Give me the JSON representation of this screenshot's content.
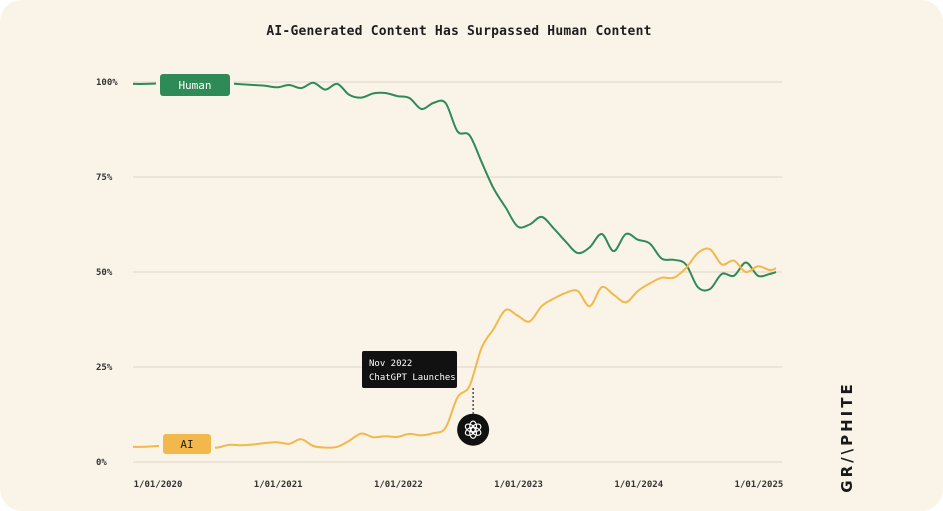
{
  "chart_data": {
    "type": "line",
    "title": "AI-Generated Content Has Surpassed Human Content",
    "xlabel": "",
    "ylabel": "",
    "x_ticks": [
      "1/01/2020",
      "1/01/2021",
      "1/01/2022",
      "1/01/2023",
      "1/01/2024",
      "1/01/2025"
    ],
    "y_ticks": [
      "100%",
      "75%",
      "50%",
      "25%",
      "0%"
    ],
    "ylim": [
      0,
      100
    ],
    "xlim": [
      2020.0,
      2025.4
    ],
    "grid": true,
    "legend": "inline labels on left",
    "series": [
      {
        "name": "Human",
        "color": "#2e8b57",
        "x": [
          2020.0,
          2020.1,
          2020.2,
          2020.3,
          2020.4,
          2020.5,
          2020.6,
          2020.7,
          2020.8,
          2020.9,
          2021.0,
          2021.1,
          2021.2,
          2021.3,
          2021.4,
          2021.5,
          2021.6,
          2021.7,
          2021.8,
          2021.9,
          2022.0,
          2022.1,
          2022.2,
          2022.3,
          2022.4,
          2022.5,
          2022.6,
          2022.7,
          2022.8,
          2022.9,
          2023.0,
          2023.1,
          2023.2,
          2023.3,
          2023.4,
          2023.5,
          2023.6,
          2023.7,
          2023.8,
          2023.9,
          2024.0,
          2024.1,
          2024.2,
          2024.3,
          2024.4,
          2024.5,
          2024.6,
          2024.7,
          2024.8,
          2024.9,
          2025.0,
          2025.1,
          2025.2,
          2025.3,
          2025.35
        ],
        "y": [
          99.5,
          99.5,
          99.6,
          99.6,
          99.4,
          99.5,
          99.8,
          99.3,
          99.6,
          99.4,
          99.2,
          99.0,
          98.6,
          99.2,
          98.4,
          99.8,
          98.0,
          99.5,
          96.6,
          95.9,
          97.0,
          97.1,
          96.3,
          95.8,
          92.9,
          94.5,
          94.5,
          87.0,
          86.0,
          79.0,
          72.0,
          67.0,
          62.0,
          62.5,
          64.5,
          61.5,
          58.0,
          55.0,
          56.5,
          60.0,
          55.5,
          60.0,
          58.5,
          57.5,
          53.5,
          53.2,
          52.0,
          46.0,
          45.5,
          49.5,
          49.0,
          52.5,
          49.0,
          49.5,
          50.0
        ]
      },
      {
        "name": "AI",
        "color": "#f2b84b",
        "x": [
          2020.0,
          2020.1,
          2020.2,
          2020.3,
          2020.4,
          2020.5,
          2020.6,
          2020.7,
          2020.8,
          2020.9,
          2021.0,
          2021.1,
          2021.2,
          2021.3,
          2021.4,
          2021.5,
          2021.6,
          2021.7,
          2021.8,
          2021.9,
          2022.0,
          2022.1,
          2022.2,
          2022.3,
          2022.4,
          2022.5,
          2022.6,
          2022.7,
          2022.8,
          2022.9,
          2023.0,
          2023.1,
          2023.2,
          2023.3,
          2023.4,
          2023.5,
          2023.6,
          2023.7,
          2023.8,
          2023.9,
          2024.0,
          2024.1,
          2024.2,
          2024.3,
          2024.4,
          2024.5,
          2024.6,
          2024.7,
          2024.8,
          2024.9,
          2025.0,
          2025.1,
          2025.2,
          2025.3,
          2025.35
        ],
        "y": [
          4.0,
          4.0,
          4.2,
          4.3,
          4.5,
          4.2,
          4.0,
          3.8,
          4.5,
          4.4,
          4.6,
          5.0,
          5.2,
          4.8,
          6.0,
          4.2,
          3.8,
          4.0,
          5.6,
          7.5,
          6.5,
          6.8,
          6.6,
          7.4,
          7.0,
          7.6,
          9.0,
          17.0,
          20.0,
          30.0,
          35.0,
          40.0,
          38.5,
          37.0,
          41.0,
          43.0,
          44.5,
          45.0,
          41.0,
          46.0,
          44.0,
          42.0,
          45.0,
          47.0,
          48.5,
          48.5,
          51.0,
          55.0,
          56.0,
          52.0,
          53.0,
          50.0,
          51.5,
          50.5,
          51.0
        ]
      }
    ],
    "annotations": [
      {
        "text": "Nov 2022",
        "text2": "ChatGPT Launches",
        "x": 2022.83,
        "y": 8.5
      }
    ]
  },
  "labels": {
    "human": "Human",
    "ai": "AI"
  },
  "brand": "GR/\\PHITE",
  "colors": {
    "background": "#faf4e8",
    "human": "#2e8b57",
    "ai": "#f2b84b",
    "gridline": "#ddd6c6"
  }
}
